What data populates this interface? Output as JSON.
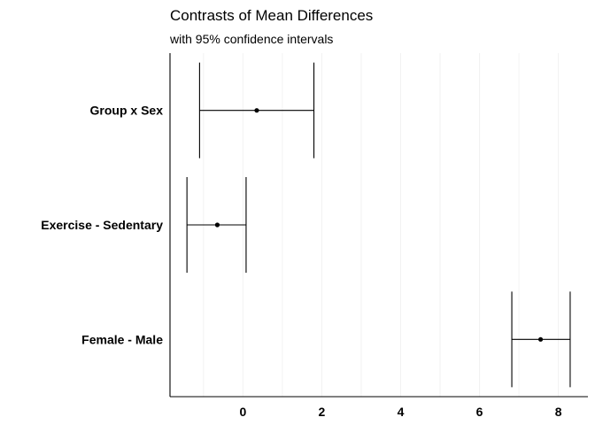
{
  "chart_data": {
    "type": "errorbar",
    "title": "Contrasts of Mean Differences",
    "subtitle": "with 95% confidence intervals",
    "xlabel": "",
    "ylabel": "",
    "xlim": [
      -1.85,
      8.75
    ],
    "x_ticks": [
      0,
      2,
      4,
      6,
      8
    ],
    "grid": "vertical-minor",
    "grid_color": "#f2f2f2",
    "line_color": "#000000",
    "categories": [
      "Group x Sex",
      "Exercise - Sedentary",
      "Female - Male"
    ],
    "estimates": [
      0.35,
      -0.65,
      7.55
    ],
    "lower": [
      -1.1,
      -1.42,
      6.82
    ],
    "upper": [
      1.8,
      0.08,
      8.3
    ]
  }
}
